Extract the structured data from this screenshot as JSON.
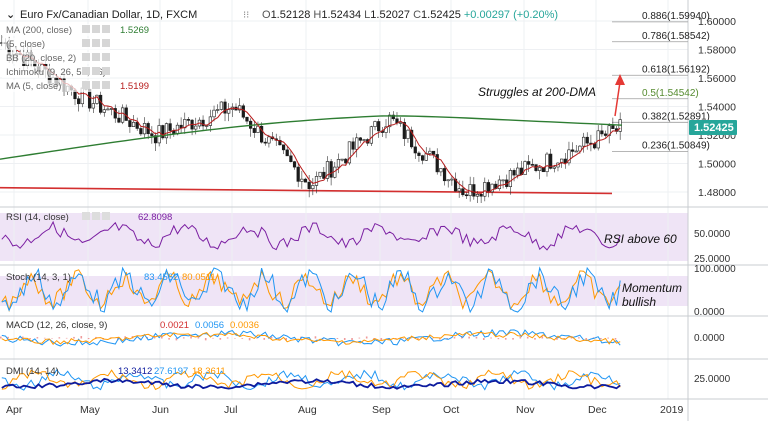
{
  "header": {
    "symbol": "Euro Fx/Canadian Dollar, 1D, FXCM",
    "ohlc": [
      {
        "label": "O",
        "value": "1.52128"
      },
      {
        "label": "H",
        "value": "1.52434"
      },
      {
        "label": "L",
        "value": "1.52027"
      },
      {
        "label": "C",
        "value": "1.52425"
      }
    ],
    "change": "+0.00297 (+0.20%)",
    "change_color": "#26a69a"
  },
  "indicators": [
    {
      "text": "MA (200, close)",
      "value": "1.5269",
      "color": "#2e7d32"
    },
    {
      "text": "(5, close)",
      "value": "",
      "color": "#999999"
    },
    {
      "text": "BB (20, close, 2)",
      "value": "",
      "color": "#999999"
    },
    {
      "text": "Ichimoku (9, 26, 52, 26)",
      "value": "",
      "color": "#999999"
    },
    {
      "text": "MA (5, close)",
      "value": "1.5199",
      "color": "#b71c1c"
    }
  ],
  "price_scale": {
    "ticks": [
      "1.60000",
      "1.58000",
      "1.56000",
      "1.54000",
      "1.52000",
      "1.50000",
      "1.48000"
    ],
    "current": "1.52425",
    "current_bg": "#26a69a"
  },
  "fibonacci": [
    {
      "label": "0.886(1.59940)",
      "value": 1.5994
    },
    {
      "label": "0.786(1.58542)",
      "value": 1.58542
    },
    {
      "label": "0.618(1.56192)",
      "value": 1.56192
    },
    {
      "label": "0.5(1.54542)",
      "value": 1.54542
    },
    {
      "label": "0.382(1.52891)",
      "value": 1.52891
    },
    {
      "label": "0.236(1.50849)",
      "value": 1.50849
    }
  ],
  "annotations": {
    "main": "Struggles at 200-DMA",
    "rsi": "RSI above 60",
    "stoch": "Momentum bullish"
  },
  "rsi": {
    "legend": "RSI (14, close)",
    "value": "62.8098",
    "color": "#7b1fa2",
    "ticks": [
      "50.0000",
      "25.0000"
    ]
  },
  "stoch": {
    "legend": "Stoch (14, 3, 1)",
    "k": "83.4562",
    "d": "80.0511",
    "k_color": "#2196f3",
    "d_color": "#ff9800",
    "ticks": [
      "100.0000",
      "0.0000"
    ]
  },
  "macd": {
    "legend": "MACD (12, 26, close, 9)",
    "hist": "0.0021",
    "macd": "0.0056",
    "signal": "0.0036",
    "ticks": [
      "0.0000"
    ]
  },
  "dmi": {
    "legend": "DMI (14, 14)",
    "adx": "13.3412",
    "plus": "27.6197",
    "minus": "18.3611",
    "ticks": [
      "25.0000"
    ]
  },
  "time_axis": [
    "Apr",
    "May",
    "Jun",
    "Jul",
    "Aug",
    "Sep",
    "Oct",
    "Nov",
    "Dec",
    "2019"
  ],
  "chart_data": {
    "type": "candlestick",
    "title": "Euro Fx/Canadian Dollar, 1D, FXCM",
    "x_range": [
      "Apr",
      "Dec"
    ],
    "ylim": [
      1.47,
      1.61
    ],
    "close_series": [
      {
        "month": "Apr",
        "close": 1.585
      },
      {
        "month": "May",
        "close": 1.548
      },
      {
        "month": "Jun",
        "close": 1.52
      },
      {
        "month": "Jul",
        "close": 1.54
      },
      {
        "month": "Aug",
        "close": 1.485
      },
      {
        "month": "Sep",
        "close": 1.532
      },
      {
        "month": "Oct",
        "close": 1.48
      },
      {
        "month": "Nov",
        "close": 1.5
      },
      {
        "month": "Dec",
        "close": 1.52425
      }
    ],
    "ma200_value": 1.5269,
    "ma5_value": 1.5199,
    "support_level": 1.481,
    "grid": true
  }
}
